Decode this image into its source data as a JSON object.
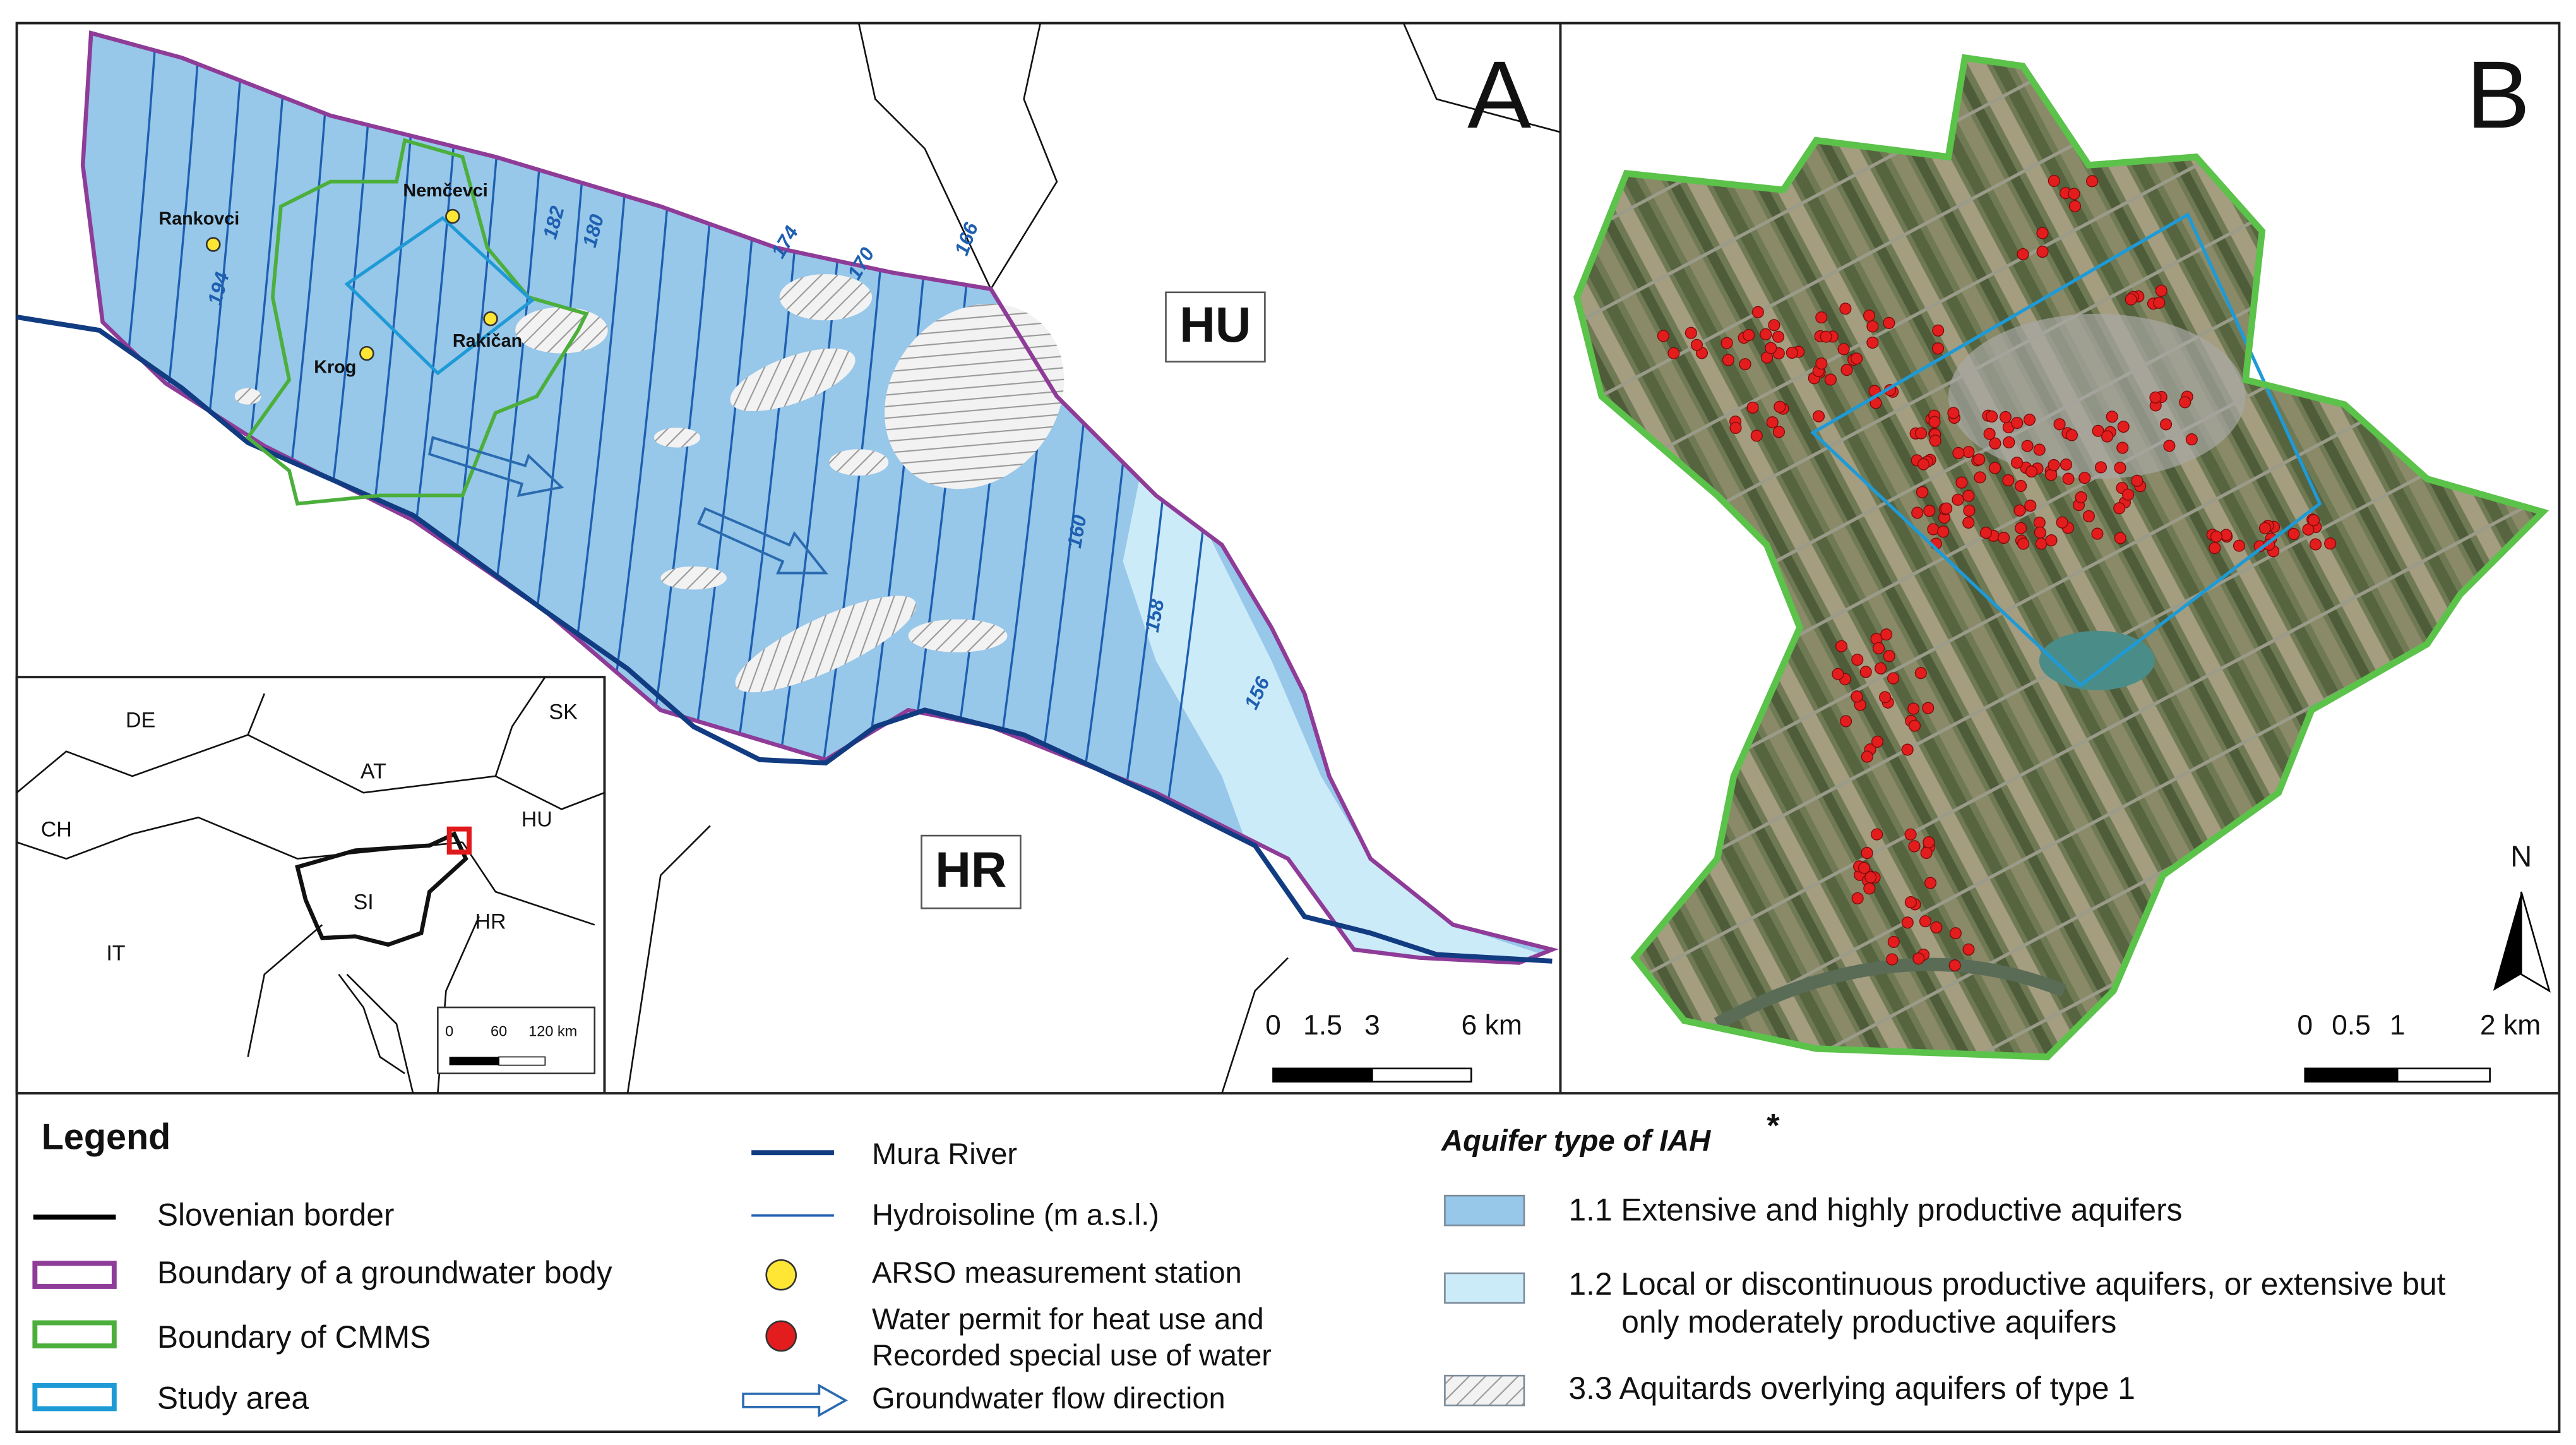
{
  "panel_a": {
    "label": "A",
    "countries": [
      "HU",
      "HR"
    ],
    "stations": [
      "Rankovci",
      "Nemčevci",
      "Rakičan",
      "Krog"
    ],
    "isolines": [
      "194",
      "182",
      "180",
      "174",
      "170",
      "166",
      "160",
      "158",
      "156"
    ],
    "scale_bar": [
      "0",
      "1.5",
      "3",
      "6 km"
    ]
  },
  "inset": {
    "countries": [
      "DE",
      "AT",
      "SK",
      "CH",
      "HU",
      "SI",
      "HR",
      "IT"
    ],
    "scale_bar": [
      "0",
      "60",
      "120 km"
    ]
  },
  "panel_b": {
    "label": "B",
    "north": "N",
    "scale_bar": [
      "0",
      "0.5",
      "1",
      "2 km"
    ]
  },
  "legend": {
    "title": "Legend",
    "items_1": [
      "Slovenian border",
      "Boundary of a groundwater body",
      "Boundary of CMMS",
      "Study area"
    ],
    "items_2": [
      "Mura River",
      "Hydroisoline (m a.s.l.)",
      "ARSO measurement station",
      [
        "Water permit for heat use and",
        "Recorded special use of water"
      ],
      "Groundwater flow direction"
    ],
    "aquifer_title": "Aquifer type of IAH",
    "aquifer_note": "*",
    "aquifer_items": [
      "1.1 Extensive and highly productive aquifers",
      [
        "1.2 Local or discontinuous productive aquifers, or extensive but",
        "only moderately productive aquifers"
      ],
      "3.3 Aquitards overlying aquifers of type 1"
    ]
  }
}
